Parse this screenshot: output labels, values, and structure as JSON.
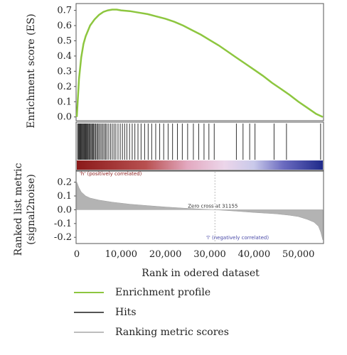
{
  "chart_data": {
    "type": "line",
    "panels": {
      "es": {
        "ylabel": "Enrichment score (ES)",
        "yticks": [
          "0.7",
          "0.6",
          "0.5",
          "0.4",
          "0.3",
          "0.2",
          "0.1",
          "0.0"
        ],
        "ylim": [
          -0.02,
          0.74
        ],
        "series": {
          "name": "Enrichment profile",
          "color": "#8dc63f",
          "x": [
            0,
            500,
            1000,
            1500,
            2000,
            3000,
            4000,
            5000,
            6000,
            7000,
            8000,
            9000,
            10000,
            12000,
            14000,
            16000,
            18000,
            20000,
            22000,
            24000,
            26000,
            28000,
            30000,
            32000,
            34000,
            36000,
            38000,
            40000,
            42000,
            44000,
            46000,
            48000,
            50000,
            52000,
            54000,
            55500
          ],
          "y": [
            0.0,
            0.25,
            0.39,
            0.48,
            0.53,
            0.6,
            0.64,
            0.67,
            0.69,
            0.7,
            0.705,
            0.705,
            0.7,
            0.695,
            0.685,
            0.675,
            0.66,
            0.645,
            0.625,
            0.6,
            0.57,
            0.54,
            0.505,
            0.47,
            0.43,
            0.39,
            0.35,
            0.31,
            0.27,
            0.225,
            0.185,
            0.145,
            0.1,
            0.06,
            0.02,
            0.0
          ]
        }
      },
      "hits": {
        "series_name": "Hits",
        "color": "#333333",
        "positions": [
          200,
          350,
          500,
          650,
          800,
          950,
          1100,
          1250,
          1400,
          1550,
          1700,
          1850,
          2000,
          2150,
          2300,
          2450,
          2600,
          2800,
          3000,
          3200,
          3400,
          3600,
          3800,
          4000,
          4250,
          4500,
          4750,
          5000,
          5300,
          5600,
          5900,
          6200,
          6500,
          6800,
          7200,
          7600,
          8000,
          8400,
          8800,
          9300,
          9800,
          10300,
          10800,
          11300,
          11900,
          12500,
          13100,
          13800,
          14500,
          15300,
          16100,
          16900,
          17800,
          18700,
          19600,
          20600,
          21600,
          22700,
          23800,
          25000,
          26300,
          27500,
          28700,
          29800,
          31000,
          36000,
          37500,
          39000,
          40200,
          44500,
          47300,
          55000
        ],
        "label_pos": "'h' (positively correlated)",
        "label_neg": "'l' (negatively correlated)"
      },
      "metric": {
        "series_name": "Ranking metric scores",
        "color": "#b3b3b3",
        "ylabel_line1": "Ranked list metric",
        "ylabel_line2": "(signal2noise)",
        "yticks": [
          "0.2",
          "0.1",
          "0.0",
          "-0.1",
          "-0.2"
        ],
        "ylim": [
          -0.24,
          0.27
        ],
        "x": [
          0,
          500,
          1000,
          2000,
          3000,
          5000,
          8000,
          12000,
          16000,
          20000,
          25000,
          31155,
          36000,
          40000,
          45000,
          48000,
          50000,
          52000,
          53500,
          54500,
          55000,
          55500
        ],
        "y": [
          0.2,
          0.16,
          0.13,
          0.1,
          0.085,
          0.07,
          0.055,
          0.04,
          0.03,
          0.02,
          0.01,
          0.0,
          -0.01,
          -0.02,
          -0.03,
          -0.04,
          -0.05,
          -0.07,
          -0.09,
          -0.12,
          -0.16,
          -0.22
        ],
        "zero_cross_label": "Zero cross at 31155",
        "zero_cross_x": 31155
      }
    },
    "xlabel": "Rank in odered dataset",
    "xticks": [
      "0",
      "10,000",
      "20,000",
      "30,000",
      "40,000",
      "50,000"
    ],
    "xtick_values": [
      0,
      10000,
      20000,
      30000,
      40000,
      50000
    ],
    "xlim": [
      0,
      55500
    ]
  },
  "legend": {
    "items": [
      {
        "label": "Enrichment profile",
        "color": "#8dc63f"
      },
      {
        "label": "Hits",
        "color": "#555555"
      },
      {
        "label": "Ranking metric scores",
        "color": "#bdbdbd"
      }
    ]
  }
}
